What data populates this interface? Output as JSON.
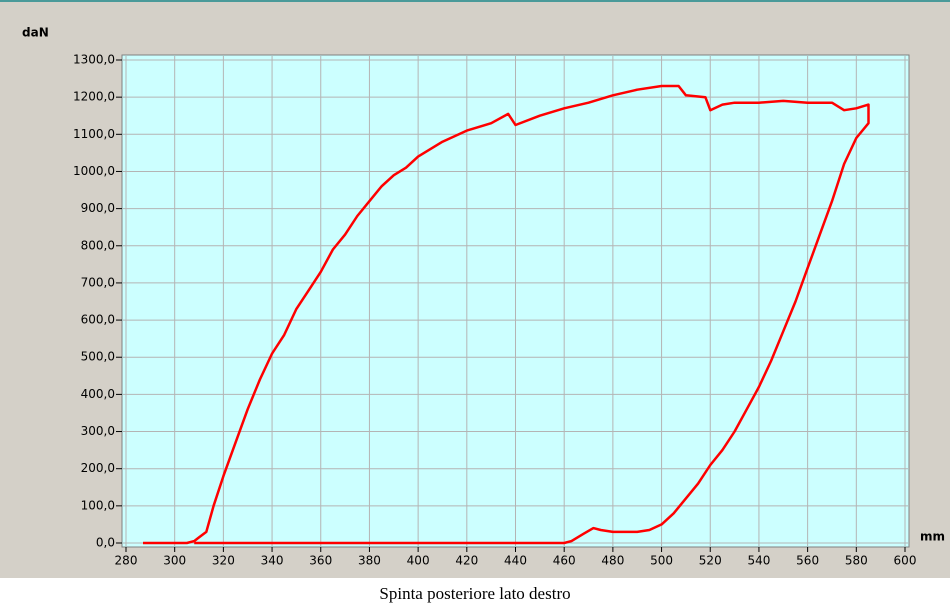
{
  "chart_data": {
    "type": "line",
    "y_label": "daN",
    "x_label": "mm",
    "caption": "Spinta posteriore lato destro",
    "xlim": [
      280,
      600
    ],
    "ylim": [
      0,
      1300
    ],
    "xticks": [
      280,
      300,
      320,
      340,
      360,
      380,
      400,
      420,
      440,
      460,
      480,
      500,
      520,
      540,
      560,
      580,
      600
    ],
    "yticks": [
      {
        "value": 0,
        "label": "0,0"
      },
      {
        "value": 100,
        "label": "100,0"
      },
      {
        "value": 200,
        "label": "200,0"
      },
      {
        "value": 300,
        "label": "300,0"
      },
      {
        "value": 400,
        "label": "400,0"
      },
      {
        "value": 500,
        "label": "500,0"
      },
      {
        "value": 600,
        "label": "600,0"
      },
      {
        "value": 700,
        "label": "700,0"
      },
      {
        "value": 800,
        "label": "800,0"
      },
      {
        "value": 900,
        "label": "900,0"
      },
      {
        "value": 1000,
        "label": "1000,0"
      },
      {
        "value": 1100,
        "label": "1100,0"
      },
      {
        "value": 1200,
        "label": "1200,0"
      },
      {
        "value": 1300,
        "label": "1300,0"
      }
    ],
    "grid": true,
    "series": [
      {
        "color": "#ff0000",
        "x": [
          287,
          305,
          308,
          310,
          313,
          316,
          320,
          325,
          330,
          335,
          340,
          345,
          350,
          355,
          360,
          365,
          370,
          375,
          380,
          385,
          390,
          395,
          400,
          410,
          420,
          430,
          437,
          440,
          450,
          460,
          470,
          480,
          490,
          500,
          507,
          510,
          518,
          520,
          525,
          530,
          540,
          550,
          560,
          570,
          575,
          580,
          585,
          585,
          580,
          575,
          570,
          565,
          560,
          555,
          550,
          545,
          540,
          535,
          530,
          525,
          520,
          515,
          510,
          505,
          500,
          495,
          490,
          480,
          475,
          472,
          468,
          463,
          460,
          308
        ],
        "values": [
          0,
          0,
          5,
          15,
          30,
          100,
          180,
          270,
          360,
          440,
          510,
          560,
          630,
          680,
          730,
          790,
          830,
          880,
          920,
          960,
          990,
          1010,
          1040,
          1080,
          1110,
          1130,
          1155,
          1125,
          1150,
          1170,
          1185,
          1205,
          1220,
          1230,
          1230,
          1205,
          1200,
          1165,
          1180,
          1185,
          1185,
          1190,
          1185,
          1185,
          1165,
          1170,
          1180,
          1130,
          1090,
          1020,
          920,
          830,
          740,
          650,
          570,
          490,
          420,
          360,
          300,
          250,
          210,
          160,
          120,
          80,
          50,
          35,
          30,
          30,
          35,
          40,
          25,
          5,
          0,
          0
        ]
      }
    ]
  }
}
